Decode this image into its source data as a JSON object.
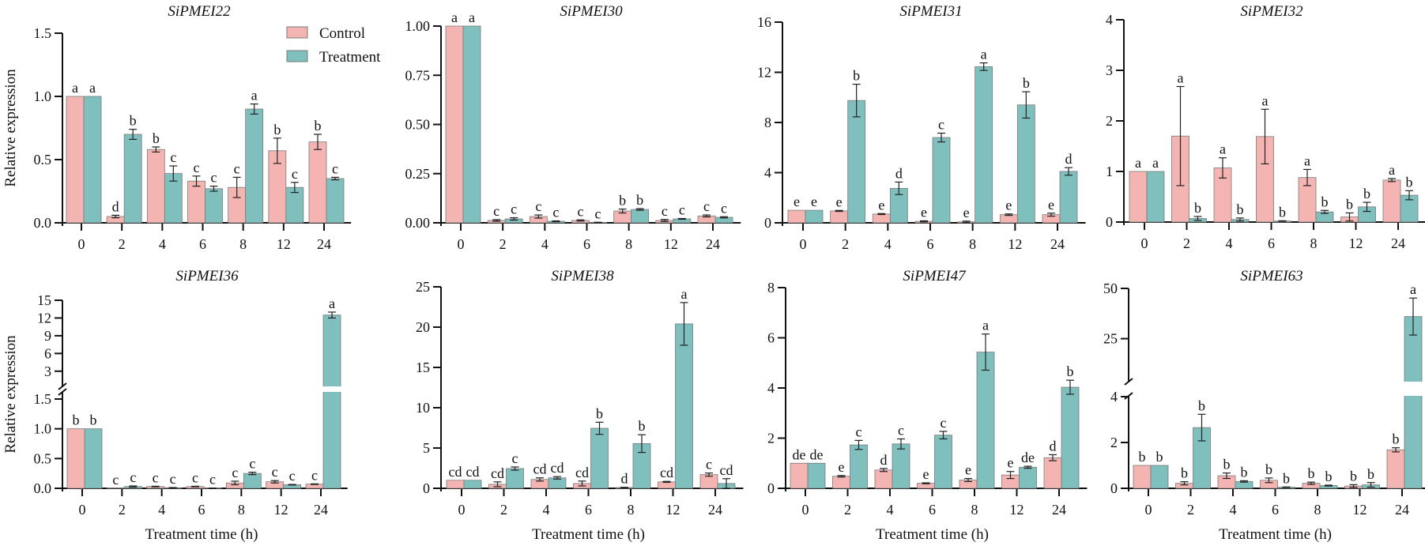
{
  "figure": {
    "legend": {
      "placement": "top-right of first panel",
      "entries": [
        {
          "name": "Control",
          "color": "#f4b5b2"
        },
        {
          "name": "Treatment",
          "color": "#7fbfbd"
        }
      ]
    },
    "colors": {
      "control": "#f4b5b2",
      "treatment": "#7fbfbd",
      "bar_edge": "#7a7a7a",
      "axis": "#111111"
    }
  },
  "chart_data": [
    {
      "type": "bar",
      "title": "SiPMEI22",
      "xlabel": "",
      "ylabel": "Relative expression",
      "categories": [
        "0",
        "2",
        "4",
        "6",
        "8",
        "12",
        "24"
      ],
      "ylim": [
        0,
        1.5
      ],
      "yticks": [
        "0.0",
        "0.5",
        "1.0",
        "1.5"
      ],
      "ytick_values": [
        0,
        0.5,
        1.0,
        1.5
      ],
      "series": [
        {
          "name": "Control",
          "values": [
            1.0,
            0.05,
            0.58,
            0.33,
            0.28,
            0.57,
            0.64
          ],
          "errors": [
            0,
            0.01,
            0.02,
            0.04,
            0.08,
            0.1,
            0.06
          ],
          "labels": [
            "a",
            "d",
            "b",
            "c",
            "c",
            "b",
            "b"
          ]
        },
        {
          "name": "Treatment",
          "values": [
            1.0,
            0.7,
            0.39,
            0.27,
            0.9,
            0.28,
            0.35
          ],
          "errors": [
            0,
            0.04,
            0.06,
            0.02,
            0.04,
            0.04,
            0.01
          ],
          "labels": [
            "a",
            "b",
            "c",
            "c",
            "a",
            "c",
            "c"
          ]
        }
      ]
    },
    {
      "type": "bar",
      "title": "SiPMEI30",
      "xlabel": "",
      "ylabel": "",
      "categories": [
        "0",
        "2",
        "4",
        "6",
        "8",
        "12",
        "24"
      ],
      "ylim": [
        0,
        1.0
      ],
      "yticks": [
        "0.00",
        "0.25",
        "0.50",
        "0.75",
        "1.00"
      ],
      "ytick_values": [
        0,
        0.25,
        0.5,
        0.75,
        1.0
      ],
      "series": [
        {
          "name": "Control",
          "values": [
            1.0,
            0.012,
            0.032,
            0.012,
            0.06,
            0.012,
            0.035
          ],
          "errors": [
            0,
            0.004,
            0.008,
            0.003,
            0.01,
            0.005,
            0.005
          ],
          "labels": [
            "a",
            "c",
            "c",
            "c",
            "b",
            "c",
            "c"
          ]
        },
        {
          "name": "Treatment",
          "values": [
            1.0,
            0.02,
            0.008,
            0.002,
            0.068,
            0.02,
            0.028
          ],
          "errors": [
            0,
            0.006,
            0.002,
            0.001,
            0.004,
            0.002,
            0.003
          ],
          "labels": [
            "a",
            "c",
            "c",
            "c",
            "b",
            "c",
            "c"
          ]
        }
      ]
    },
    {
      "type": "bar",
      "title": "SiPMEI31",
      "xlabel": "",
      "ylabel": "",
      "categories": [
        "0",
        "2",
        "4",
        "6",
        "8",
        "12",
        "24"
      ],
      "ylim": [
        0,
        16
      ],
      "yticks": [
        "0",
        "4",
        "8",
        "12",
        "16"
      ],
      "ytick_values": [
        0,
        4,
        8,
        12,
        16
      ],
      "series": [
        {
          "name": "Control",
          "values": [
            1.0,
            0.95,
            0.7,
            0.12,
            0.08,
            0.65,
            0.65
          ],
          "errors": [
            0,
            0.04,
            0.04,
            0.04,
            0.06,
            0.06,
            0.12
          ],
          "labels": [
            "e",
            "e",
            "e",
            "e",
            "e",
            "e",
            "e"
          ]
        },
        {
          "name": "Treatment",
          "values": [
            1.0,
            9.75,
            2.75,
            6.8,
            12.45,
            9.4,
            4.1
          ],
          "errors": [
            0,
            1.3,
            0.5,
            0.35,
            0.3,
            1.05,
            0.3
          ],
          "labels": [
            "e",
            "b",
            "d",
            "c",
            "a",
            "b",
            "d"
          ]
        }
      ]
    },
    {
      "type": "bar",
      "title": "SiPMEI32",
      "xlabel": "",
      "ylabel": "",
      "categories": [
        "0",
        "2",
        "4",
        "6",
        "8",
        "12",
        "24"
      ],
      "ylim": [
        0,
        4
      ],
      "yticks": [
        "0",
        "1",
        "2",
        "3",
        "4"
      ],
      "ytick_values": [
        0,
        1,
        2,
        3,
        4
      ],
      "series": [
        {
          "name": "Control",
          "values": [
            1.0,
            1.7,
            1.07,
            1.69,
            0.88,
            0.1,
            0.83
          ],
          "errors": [
            0,
            0.98,
            0.2,
            0.54,
            0.16,
            0.08,
            0.03
          ],
          "labels": [
            "a",
            "a",
            "a",
            "a",
            "a",
            "b",
            "a"
          ]
        },
        {
          "name": "Treatment",
          "values": [
            1.0,
            0.07,
            0.05,
            0.02,
            0.2,
            0.3,
            0.53
          ],
          "errors": [
            0,
            0.04,
            0.03,
            0.005,
            0.03,
            0.09,
            0.09
          ],
          "labels": [
            "a",
            "b",
            "b",
            "b",
            "b",
            "b",
            "b"
          ]
        }
      ]
    },
    {
      "type": "bar",
      "title": "SiPMEI36",
      "xlabel": "Treatment time (h)",
      "ylabel": "Relative expression",
      "categories": [
        "0",
        "2",
        "4",
        "6",
        "8",
        "12",
        "24"
      ],
      "axis_break": {
        "lower_range": [
          0,
          1.5
        ],
        "upper_range": [
          1.5,
          15
        ]
      },
      "ylim": [
        0,
        15
      ],
      "yticks": [
        "0.0",
        "0.5",
        "1.0",
        "1.5",
        "3",
        "6",
        "9",
        "12",
        "15"
      ],
      "ytick_values": [
        0,
        0.5,
        1.0,
        1.5,
        3,
        6,
        9,
        12,
        15
      ],
      "series": [
        {
          "name": "Control",
          "values": [
            1.0,
            0.0,
            0.03,
            0.03,
            0.09,
            0.11,
            0.07
          ],
          "errors": [
            0,
            0,
            0.005,
            0.005,
            0.03,
            0.02,
            0.005
          ],
          "labels": [
            "b",
            "c",
            "c",
            "c",
            "c",
            "c",
            "c"
          ]
        },
        {
          "name": "Treatment",
          "values": [
            1.0,
            0.03,
            0.01,
            0.003,
            0.25,
            0.06,
            12.5
          ],
          "errors": [
            0,
            0.01,
            0.003,
            0.001,
            0.02,
            0.005,
            0.5
          ],
          "labels": [
            "b",
            "c",
            "c",
            "c",
            "c",
            "c",
            "a"
          ]
        }
      ]
    },
    {
      "type": "bar",
      "title": "SiPMEI38",
      "xlabel": "Treatment time (h)",
      "ylabel": "",
      "categories": [
        "0",
        "2",
        "4",
        "6",
        "8",
        "12",
        "24"
      ],
      "ylim": [
        0,
        25
      ],
      "yticks": [
        "0",
        "5",
        "10",
        "15",
        "20",
        "25"
      ],
      "ytick_values": [
        0,
        5,
        10,
        15,
        20,
        25
      ],
      "series": [
        {
          "name": "Control",
          "values": [
            1.0,
            0.5,
            1.1,
            0.6,
            0.1,
            0.8,
            1.7
          ],
          "errors": [
            0,
            0.3,
            0.2,
            0.3,
            0.03,
            0.06,
            0.2
          ],
          "labels": [
            "cd",
            "cd",
            "cd",
            "cd",
            "d",
            "cd",
            "c"
          ]
        },
        {
          "name": "Treatment",
          "values": [
            1.0,
            2.45,
            1.3,
            7.45,
            5.55,
            20.4,
            0.6
          ],
          "errors": [
            0,
            0.2,
            0.15,
            0.75,
            1.1,
            2.65,
            0.6
          ],
          "labels": [
            "cd",
            "c",
            "cd",
            "b",
            "b",
            "a",
            "cd"
          ]
        }
      ]
    },
    {
      "type": "bar",
      "title": "SiPMEI47",
      "xlabel": "Treatment time (h)",
      "ylabel": "",
      "categories": [
        "0",
        "2",
        "4",
        "6",
        "8",
        "12",
        "24"
      ],
      "ylim": [
        0,
        8
      ],
      "yticks": [
        "0",
        "2",
        "4",
        "6",
        "8"
      ],
      "ytick_values": [
        0,
        2,
        4,
        6,
        8
      ],
      "series": [
        {
          "name": "Control",
          "values": [
            1.0,
            0.48,
            0.73,
            0.2,
            0.33,
            0.53,
            1.22
          ],
          "errors": [
            0,
            0.03,
            0.06,
            0.02,
            0.06,
            0.14,
            0.12
          ],
          "labels": [
            "de",
            "e",
            "d",
            "e",
            "e",
            "e",
            "d"
          ]
        },
        {
          "name": "Treatment",
          "values": [
            1.0,
            1.73,
            1.77,
            2.12,
            5.43,
            0.84,
            4.03
          ],
          "errors": [
            0,
            0.18,
            0.2,
            0.15,
            0.72,
            0.04,
            0.28
          ],
          "labels": [
            "de",
            "c",
            "c",
            "c",
            "a",
            "de",
            "b"
          ]
        }
      ]
    },
    {
      "type": "bar",
      "title": "SiPMEI63",
      "xlabel": "Treatment time (h)",
      "ylabel": "",
      "categories": [
        "0",
        "2",
        "4",
        "6",
        "8",
        "12",
        "24"
      ],
      "axis_break": {
        "lower_range": [
          0,
          4
        ],
        "upper_range": [
          4,
          50
        ]
      },
      "ylim": [
        0,
        50
      ],
      "yticks": [
        "0",
        "2",
        "4",
        "25",
        "50"
      ],
      "ytick_values": [
        0,
        2,
        4,
        25,
        50
      ],
      "series": [
        {
          "name": "Control",
          "values": [
            1.0,
            0.22,
            0.55,
            0.35,
            0.22,
            0.1,
            1.68
          ],
          "errors": [
            0,
            0.07,
            0.12,
            0.1,
            0.05,
            0.06,
            0.09
          ],
          "labels": [
            "b",
            "b",
            "b",
            "b",
            "b",
            "b",
            "b"
          ]
        },
        {
          "name": "Treatment",
          "values": [
            1.0,
            2.65,
            0.3,
            0.05,
            0.12,
            0.15,
            36.0
          ],
          "errors": [
            0,
            0.58,
            0.03,
            0.01,
            0.02,
            0.1,
            9.2
          ],
          "labels": [
            "b",
            "b",
            "b",
            "b",
            "b",
            "b",
            "a"
          ]
        }
      ]
    }
  ]
}
